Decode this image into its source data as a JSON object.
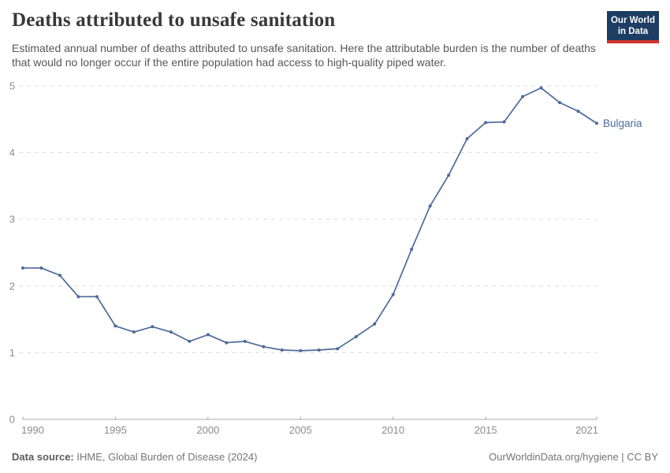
{
  "header": {
    "title": "Deaths attributed to unsafe sanitation",
    "subtitle": "Estimated annual number of deaths attributed to unsafe sanitation. Here the attributable burden is the number of deaths that would no longer occur if the entire population had access to high-quality piped water.",
    "logo": {
      "line1": "Our World",
      "line2": "in Data"
    }
  },
  "footer": {
    "source_label": "Data source:",
    "source_text": " IHME, Global Burden of Disease (2024)",
    "link_text": "OurWorldinData.org/hygiene | CC BY"
  },
  "colors": {
    "line": "#4c6a9c",
    "grid": "#dcdcdc",
    "axis": "#a8a8a8",
    "tick_label": "#8b8b8b",
    "logo_bg": "#1d3d63",
    "logo_red": "#d0342c"
  },
  "chart_data": {
    "type": "line",
    "title": "Deaths attributed to unsafe sanitation",
    "xlabel": "",
    "ylabel": "",
    "xlim": [
      1990,
      2021
    ],
    "ylim": [
      0,
      5
    ],
    "x_ticks": [
      1990,
      1995,
      2000,
      2005,
      2010,
      2015,
      2021
    ],
    "y_ticks": [
      0,
      1,
      2,
      3,
      4,
      5
    ],
    "grid": "horizontal-dashed",
    "legend_position": "end-of-line-label",
    "series": [
      {
        "name": "Bulgaria",
        "color": "#4c6a9c",
        "x": [
          1990,
          1991,
          1992,
          1993,
          1994,
          1995,
          1996,
          1997,
          1998,
          1999,
          2000,
          2001,
          2002,
          2003,
          2004,
          2005,
          2006,
          2007,
          2008,
          2009,
          2010,
          2011,
          2012,
          2013,
          2014,
          2015,
          2016,
          2017,
          2018,
          2019,
          2020,
          2021
        ],
        "values": [
          2.27,
          2.27,
          2.16,
          1.84,
          1.84,
          1.4,
          1.31,
          1.39,
          1.31,
          1.17,
          1.27,
          1.15,
          1.17,
          1.09,
          1.04,
          1.03,
          1.04,
          1.06,
          1.24,
          1.43,
          1.87,
          2.55,
          3.2,
          3.66,
          4.21,
          4.45,
          4.46,
          4.84,
          4.97,
          4.75,
          4.62,
          4.44
        ]
      }
    ]
  }
}
